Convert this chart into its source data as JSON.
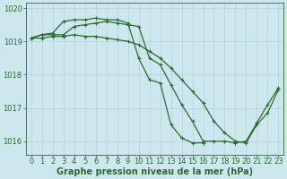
{
  "title": "",
  "xlabel": "Graphe pression niveau de la mer (hPa)",
  "background_color": "#cce8ee",
  "grid_color": "#aaccd4",
  "line_color": "#2d6a2d",
  "series": [
    {
      "x": [
        0,
        1,
        2,
        3,
        4,
        5,
        6,
        7,
        8,
        9,
        10,
        11,
        12,
        13,
        14,
        15,
        16,
        17,
        18,
        19,
        20,
        21,
        22,
        23
      ],
      "y": [
        1019.1,
        1019.2,
        1019.25,
        1019.6,
        1019.65,
        1019.65,
        1019.7,
        1019.65,
        1019.65,
        1019.55,
        1018.5,
        1017.85,
        1017.75,
        1016.5,
        1016.1,
        1015.95,
        1015.95,
        null,
        null,
        null,
        null,
        null,
        null,
        null
      ]
    },
    {
      "x": [
        0,
        1,
        2,
        3,
        4,
        5,
        6,
        7,
        8,
        9,
        10,
        11,
        12,
        13,
        14,
        15,
        16,
        17,
        18,
        19,
        20,
        21,
        22,
        23
      ],
      "y": [
        1019.1,
        1019.2,
        1019.2,
        1019.2,
        1019.45,
        1019.5,
        1019.55,
        1019.6,
        1019.55,
        1019.5,
        1019.45,
        1018.5,
        1018.3,
        1017.7,
        1017.1,
        1016.6,
        1016.0,
        1016.0,
        1016.0,
        1015.95,
        1016.0,
        1016.55,
        1017.1,
        1017.6
      ]
    },
    {
      "x": [
        0,
        1,
        2,
        3,
        4,
        5,
        6,
        7,
        8,
        9,
        10,
        11,
        12,
        13,
        14,
        15,
        16,
        17,
        18,
        19,
        20,
        21,
        22,
        23
      ],
      "y": [
        1019.1,
        1019.1,
        1019.15,
        1019.15,
        1019.2,
        1019.15,
        1019.15,
        1019.1,
        1019.05,
        1019.0,
        1018.9,
        1018.7,
        1018.5,
        1018.2,
        1017.85,
        1017.5,
        1017.15,
        1016.6,
        1016.25,
        1016.0,
        1015.95,
        1016.5,
        1016.85,
        1017.55
      ]
    }
  ],
  "ylim": [
    1015.6,
    1020.15
  ],
  "xlim": [
    -0.5,
    23.5
  ],
  "yticks": [
    1016,
    1017,
    1018,
    1019,
    1020
  ],
  "xticks": [
    0,
    1,
    2,
    3,
    4,
    5,
    6,
    7,
    8,
    9,
    10,
    11,
    12,
    13,
    14,
    15,
    16,
    17,
    18,
    19,
    20,
    21,
    22,
    23
  ],
  "marker": "+",
  "marker_size": 3.5,
  "line_width": 0.9,
  "xlabel_fontsize": 7,
  "tick_fontsize": 6,
  "tick_color": "#2d6a2d"
}
